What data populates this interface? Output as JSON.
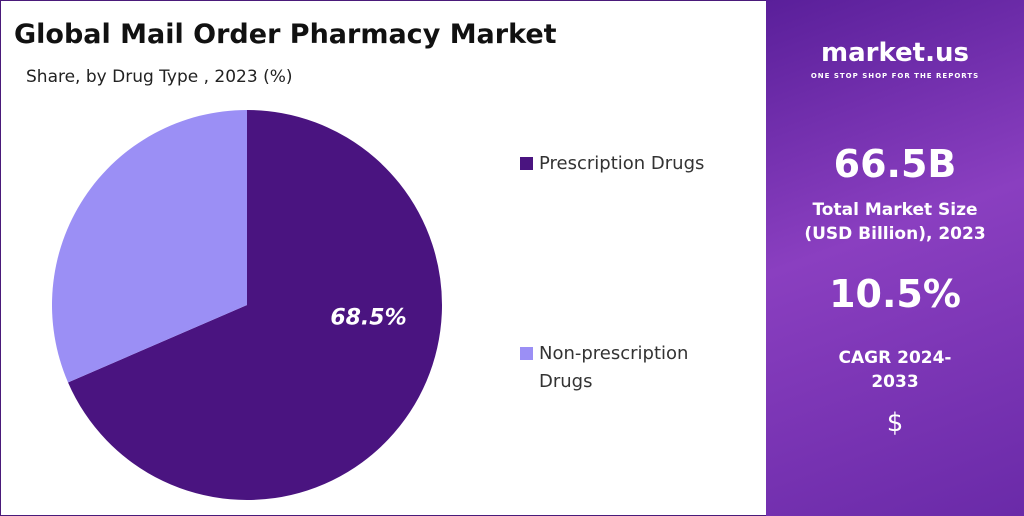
{
  "chart_data": {
    "type": "pie",
    "title": "Global Mail Order Pharmacy Market",
    "subtitle": "Share, by Drug Type , 2023 (%)",
    "categories": [
      "Prescription Drugs",
      "Non-prescription Drugs"
    ],
    "values": [
      68.5,
      31.5
    ],
    "value_labels": [
      "68.5%",
      null
    ],
    "colors": [
      "#4a1480",
      "#9b8ff5"
    ]
  },
  "sidebar": {
    "brand": "market.us",
    "tagline": "ONE STOP SHOP FOR THE REPORTS",
    "market_size": "66.5B",
    "market_size_label": "Total Market Size (USD Billion), 2023",
    "cagr": "10.5%",
    "cagr_label": "CAGR 2024-2033",
    "icon": "$"
  }
}
